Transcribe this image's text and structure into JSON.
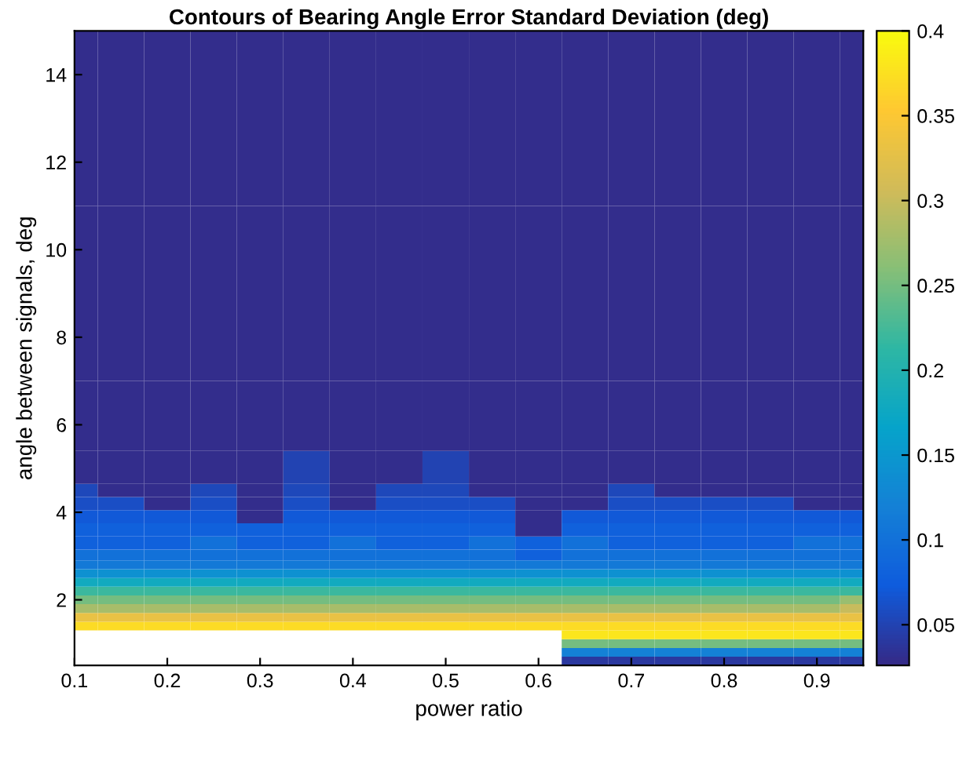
{
  "chart_data": {
    "type": "heatmap",
    "title": "Contours of Bearing Angle Error Standard Deviation (deg)",
    "xlabel": "power ratio",
    "ylabel": "angle between signals, deg",
    "x": [
      0.1,
      0.15,
      0.2,
      0.25,
      0.3,
      0.35,
      0.4,
      0.45,
      0.5,
      0.55,
      0.6,
      0.65,
      0.7,
      0.75,
      0.8,
      0.85,
      0.9,
      0.95
    ],
    "y": [
      0.6,
      0.8,
      1.0,
      1.2,
      1.4,
      1.6,
      1.8,
      2.0,
      2.2,
      2.4,
      2.6,
      2.8,
      3.0,
      3.3,
      3.6,
      3.9,
      4.2,
      4.5,
      4.8,
      6,
      8,
      10,
      12,
      14
    ],
    "cells": [
      [
        null,
        null,
        null,
        null,
        null,
        null,
        null,
        null,
        null,
        null,
        null,
        0.04,
        0.04,
        0.04,
        0.04,
        0.04,
        0.04,
        0.04
      ],
      [
        null,
        null,
        null,
        null,
        null,
        null,
        null,
        null,
        null,
        null,
        null,
        0.12,
        0.12,
        0.12,
        0.12,
        0.12,
        0.12,
        0.12
      ],
      [
        null,
        null,
        null,
        null,
        null,
        null,
        null,
        null,
        null,
        null,
        null,
        0.25,
        0.25,
        0.25,
        0.25,
        0.25,
        0.25,
        0.25
      ],
      [
        null,
        null,
        null,
        null,
        null,
        null,
        null,
        null,
        null,
        null,
        null,
        0.38,
        0.38,
        0.38,
        0.38,
        0.38,
        0.38,
        0.38
      ],
      [
        0.37,
        0.37,
        0.37,
        0.37,
        0.37,
        0.37,
        0.37,
        0.37,
        0.37,
        0.37,
        0.37,
        0.37,
        0.37,
        0.37,
        0.37,
        0.37,
        0.37,
        0.37
      ],
      [
        0.33,
        0.33,
        0.33,
        0.33,
        0.33,
        0.33,
        0.33,
        0.33,
        0.33,
        0.33,
        0.33,
        0.33,
        0.33,
        0.33,
        0.33,
        0.33,
        0.33,
        0.33
      ],
      [
        0.28,
        0.28,
        0.28,
        0.28,
        0.28,
        0.28,
        0.28,
        0.28,
        0.28,
        0.28,
        0.28,
        0.28,
        0.28,
        0.28,
        0.28,
        0.28,
        0.28,
        0.3
      ],
      [
        0.25,
        0.25,
        0.25,
        0.25,
        0.25,
        0.25,
        0.25,
        0.25,
        0.25,
        0.25,
        0.25,
        0.25,
        0.25,
        0.25,
        0.25,
        0.25,
        0.25,
        0.27
      ],
      [
        0.22,
        0.22,
        0.22,
        0.22,
        0.22,
        0.22,
        0.22,
        0.22,
        0.22,
        0.22,
        0.22,
        0.22,
        0.22,
        0.22,
        0.22,
        0.22,
        0.22,
        0.22
      ],
      [
        0.18,
        0.18,
        0.18,
        0.18,
        0.18,
        0.18,
        0.18,
        0.18,
        0.18,
        0.18,
        0.18,
        0.18,
        0.18,
        0.18,
        0.18,
        0.18,
        0.18,
        0.18
      ],
      [
        0.14,
        0.14,
        0.14,
        0.14,
        0.14,
        0.14,
        0.14,
        0.14,
        0.14,
        0.14,
        0.14,
        0.14,
        0.14,
        0.14,
        0.14,
        0.14,
        0.14,
        0.14
      ],
      [
        0.11,
        0.11,
        0.11,
        0.11,
        0.11,
        0.11,
        0.11,
        0.11,
        0.11,
        0.11,
        0.11,
        0.11,
        0.11,
        0.11,
        0.11,
        0.11,
        0.11,
        0.11
      ],
      [
        0.1,
        0.1,
        0.1,
        0.1,
        0.1,
        0.1,
        0.1,
        0.1,
        0.1,
        0.1,
        0.08,
        0.1,
        0.1,
        0.1,
        0.1,
        0.1,
        0.1,
        0.1
      ],
      [
        0.08,
        0.08,
        0.08,
        0.1,
        0.08,
        0.08,
        0.1,
        0.08,
        0.08,
        0.1,
        0.08,
        0.1,
        0.08,
        0.08,
        0.08,
        0.08,
        0.1,
        0.1
      ],
      [
        0.08,
        0.08,
        0.08,
        0.08,
        0.08,
        0.08,
        0.08,
        0.08,
        0.08,
        0.08,
        0.03,
        0.08,
        0.08,
        0.08,
        0.08,
        0.08,
        0.08,
        0.08
      ],
      [
        0.07,
        0.07,
        0.07,
        0.07,
        0.03,
        0.07,
        0.07,
        0.07,
        0.07,
        0.07,
        0.03,
        0.07,
        0.07,
        0.07,
        0.07,
        0.07,
        0.07,
        0.07
      ],
      [
        0.06,
        0.06,
        0.03,
        0.06,
        0.03,
        0.06,
        0.03,
        0.06,
        0.06,
        0.06,
        0.03,
        0.03,
        0.06,
        0.06,
        0.06,
        0.06,
        0.03,
        0.03
      ],
      [
        0.055,
        0.03,
        0.03,
        0.055,
        0.03,
        0.055,
        0.03,
        0.055,
        0.055,
        0.03,
        0.03,
        0.03,
        0.055,
        0.03,
        0.03,
        0.03,
        0.03,
        0.03
      ],
      [
        0.03,
        0.03,
        0.03,
        0.03,
        0.03,
        0.05,
        0.03,
        0.03,
        0.05,
        0.03,
        0.03,
        0.03,
        0.03,
        0.03,
        0.03,
        0.03,
        0.03,
        0.03
      ],
      [
        0.03,
        0.03,
        0.03,
        0.03,
        0.03,
        0.03,
        0.03,
        0.03,
        0.03,
        0.03,
        0.03,
        0.03,
        0.03,
        0.03,
        0.03,
        0.03,
        0.03,
        0.03
      ],
      [
        0.03,
        0.03,
        0.03,
        0.03,
        0.03,
        0.03,
        0.03,
        0.03,
        0.03,
        0.03,
        0.03,
        0.03,
        0.03,
        0.03,
        0.03,
        0.03,
        0.03,
        0.03
      ],
      [
        0.03,
        0.03,
        0.03,
        0.03,
        0.03,
        0.03,
        0.03,
        0.03,
        0.03,
        0.03,
        0.03,
        0.03,
        0.03,
        0.03,
        0.03,
        0.03,
        0.03,
        0.03
      ],
      [
        0.03,
        0.03,
        0.03,
        0.03,
        0.03,
        0.03,
        0.03,
        0.03,
        0.03,
        0.03,
        0.03,
        0.03,
        0.03,
        0.03,
        0.03,
        0.03,
        0.03,
        0.03
      ],
      [
        0.03,
        0.03,
        0.03,
        0.03,
        0.03,
        0.03,
        0.03,
        0.03,
        0.03,
        0.03,
        0.03,
        0.03,
        0.03,
        0.03,
        0.03,
        0.03,
        0.03,
        0.03
      ]
    ],
    "colors": [
      "#352a87",
      "#0f5cdd",
      "#1481d6",
      "#06a4ca",
      "#2eb7a4",
      "#87bf77",
      "#d1bb59",
      "#fec832",
      "#f9fb0e"
    ],
    "xlim": [
      0.1,
      0.95
    ],
    "ylim": [
      0.5,
      15
    ],
    "xticks": [
      0.1,
      0.2,
      0.3,
      0.4,
      0.5,
      0.6,
      0.7,
      0.8,
      0.9
    ],
    "yticks": [
      2,
      4,
      6,
      8,
      10,
      12,
      14
    ],
    "clim": [
      0.026,
      0.4
    ],
    "cticks": [
      0.05,
      0.1,
      0.15,
      0.2,
      0.25,
      0.3,
      0.35,
      0.4
    ]
  }
}
